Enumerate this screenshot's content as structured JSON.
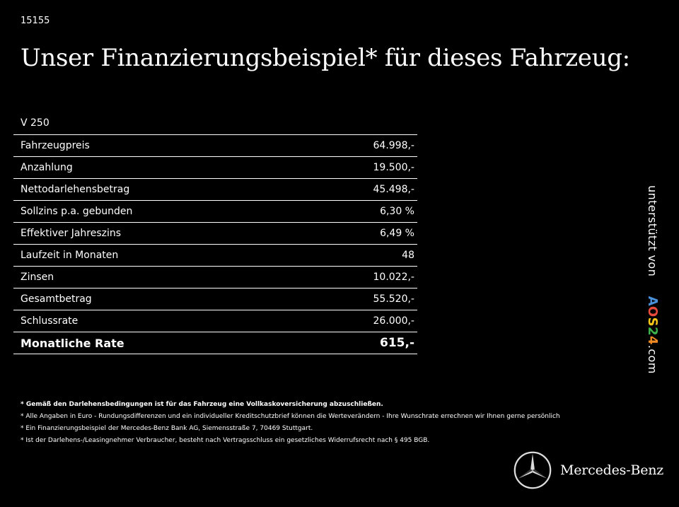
{
  "header": {
    "reference": "15155",
    "title": "Unser Finanzierungsbeispiel* für dieses Fahrzeug:"
  },
  "vehicle": {
    "model": "V 250"
  },
  "financing": {
    "rows": [
      {
        "label": "Fahrzeugpreis",
        "value": "64.998,-"
      },
      {
        "label": "Anzahlung",
        "value": "19.500,-"
      },
      {
        "label": "Nettodarlehensbetrag",
        "value": "45.498,-"
      },
      {
        "label": "Sollzins p.a. gebunden",
        "value": "6,30 %"
      },
      {
        "label": "Effektiver Jahreszins",
        "value": "6,49 %"
      },
      {
        "label": "Laufzeit in Monaten",
        "value": "48"
      },
      {
        "label": "Zinsen",
        "value": "10.022,-"
      },
      {
        "label": "Gesamtbetrag",
        "value": "55.520,-"
      },
      {
        "label": "Schlussrate",
        "value": "26.000,-"
      }
    ],
    "total": {
      "label": "Monatliche Rate",
      "value": "615,-"
    }
  },
  "sidebar": {
    "prefix": "unterstützt von",
    "brand_letters": [
      "A",
      "O",
      "S",
      "2",
      "4"
    ],
    "brand_colors": [
      "#4a90d9",
      "#e84a3c",
      "#f5c518",
      "#3cb44b",
      "#f08a24"
    ],
    "suffix": ".com"
  },
  "footnotes": [
    "* Gemäß den Darlehensbedingungen ist für das Fahrzeug eine Vollkaskoversicherung abzuschließen.",
    "* Alle Angaben in Euro - Rundungsdifferenzen und ein individueller Kreditschutzbrief können die Werteverändern - Ihre Wunschrate errechnen wir Ihnen gerne persönlich",
    "* Ein Finanzierungsbeispiel der Mercedes-Benz Bank AG, Siemensstraße 7, 70469 Stuttgart.",
    "* Ist der Darlehens-/Leasingnehmer Verbraucher, besteht nach Vertragsschluss ein gesetzliches Widerrufsrecht nach § 495 BGB."
  ],
  "logo": {
    "icon": "mercedes-star-icon",
    "wordmark": "Mercedes-Benz"
  }
}
